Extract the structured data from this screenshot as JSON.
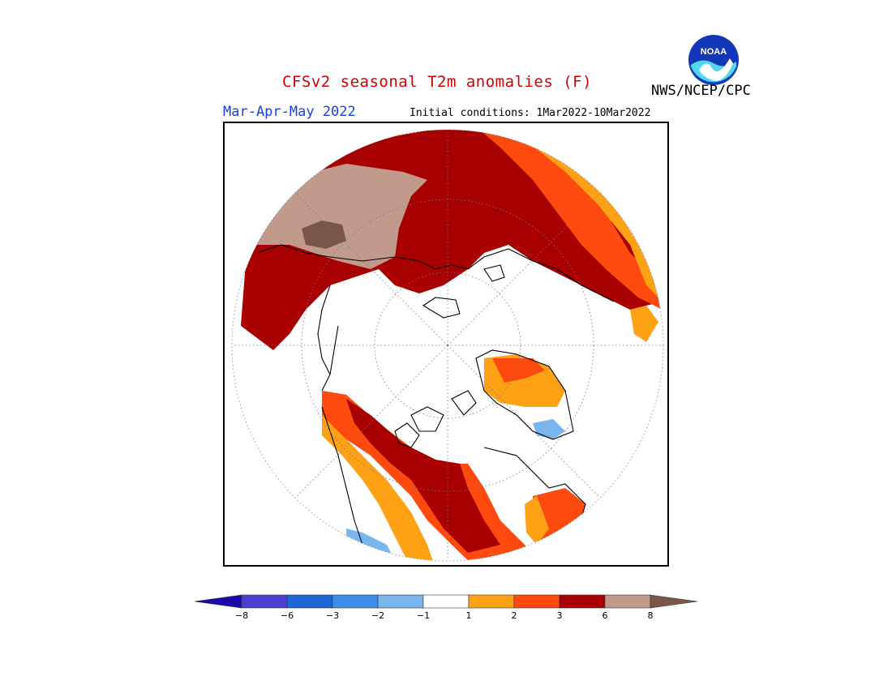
{
  "title": "CFSv2 seasonal T2m anomalies (F)",
  "organization": "NWS/NCEP/CPC",
  "logo_text": "NOAA",
  "season": "Mar-Apr-May 2022",
  "initial_conditions": "Initial conditions: 1Mar2022-10Mar2022",
  "colorbar": {
    "bins": [
      {
        "color": "#1a0aa8"
      },
      {
        "color": "#4b3fd1"
      },
      {
        "color": "#1f66d4"
      },
      {
        "color": "#3d8ee8"
      },
      {
        "color": "#79b6ee"
      },
      {
        "color": "#ffffff"
      },
      {
        "color": "#ffa114"
      },
      {
        "color": "#ff4a0f"
      },
      {
        "color": "#a80000"
      },
      {
        "color": "#c29a8c"
      },
      {
        "color": "#7a5648"
      }
    ],
    "tick_labels": [
      "−8",
      "−6",
      "−3",
      "−2",
      "−1",
      "1",
      "2",
      "3",
      "6",
      "8"
    ]
  }
}
